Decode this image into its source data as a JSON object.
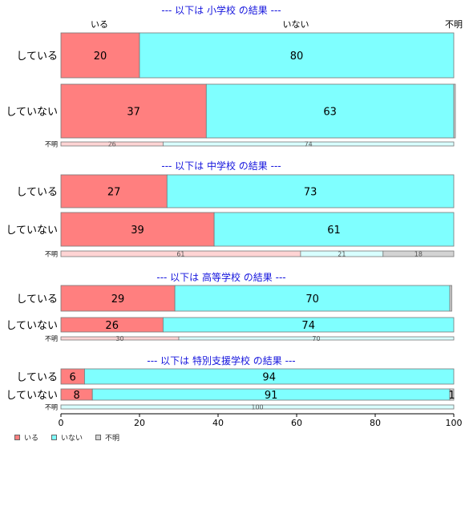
{
  "chart_data": {
    "type": "bar",
    "orientation": "horizontal",
    "stacked": "percent",
    "xlim": [
      0,
      100
    ],
    "x_ticks": [
      0,
      20,
      40,
      60,
      80,
      100
    ],
    "top_labels": [
      "いる",
      "いない",
      "不明"
    ],
    "legend_position": "bottom-left",
    "series": [
      {
        "name": "いる",
        "color": "#ff7f7f"
      },
      {
        "name": "いない",
        "color": "#7fffff"
      },
      {
        "name": "不明",
        "color": "#d3d3d3"
      }
    ],
    "panels": [
      {
        "title": "--- 以下は 小学校 の結果 ---",
        "rows": [
          {
            "label": "している",
            "values": [
              20,
              80,
              0
            ],
            "labels": [
              "20",
              "80",
              ""
            ]
          },
          {
            "label": "していない",
            "values": [
              37,
              63,
              0.4
            ],
            "labels": [
              "37",
              "63",
              ""
            ]
          },
          {
            "label": "不明",
            "small": true,
            "values": [
              26,
              74,
              0
            ],
            "labels": [
              "26",
              "74",
              ""
            ]
          }
        ]
      },
      {
        "title": "--- 以下は 中学校 の結果 ---",
        "rows": [
          {
            "label": "している",
            "values": [
              27,
              73,
              0
            ],
            "labels": [
              "27",
              "73",
              ""
            ]
          },
          {
            "label": "していない",
            "values": [
              39,
              61,
              0
            ],
            "labels": [
              "39",
              "61",
              ""
            ]
          },
          {
            "label": "不明",
            "small": true,
            "values": [
              61,
              21,
              18
            ],
            "labels": [
              "61",
              "21",
              "18"
            ]
          }
        ]
      },
      {
        "title": "--- 以下は 高等学校 の結果 ---",
        "rows": [
          {
            "label": "している",
            "values": [
              29,
              70,
              0.5
            ],
            "labels": [
              "29",
              "70",
              ""
            ]
          },
          {
            "label": "していない",
            "values": [
              26,
              74,
              0
            ],
            "labels": [
              "26",
              "74",
              ""
            ]
          },
          {
            "label": "不明",
            "small": true,
            "values": [
              30,
              70,
              0
            ],
            "labels": [
              "30",
              "70",
              ""
            ]
          }
        ]
      },
      {
        "title": "--- 以下は 特別支援学校 の結果 ---",
        "rows": [
          {
            "label": "している",
            "values": [
              6,
              94,
              0
            ],
            "labels": [
              "6",
              "94",
              ""
            ]
          },
          {
            "label": "していない",
            "values": [
              8,
              91,
              1
            ],
            "labels": [
              "8",
              "91",
              "1"
            ]
          },
          {
            "label": "不明",
            "small": true,
            "values": [
              0,
              100,
              0
            ],
            "labels": [
              "",
              "100",
              ""
            ]
          }
        ]
      }
    ]
  }
}
